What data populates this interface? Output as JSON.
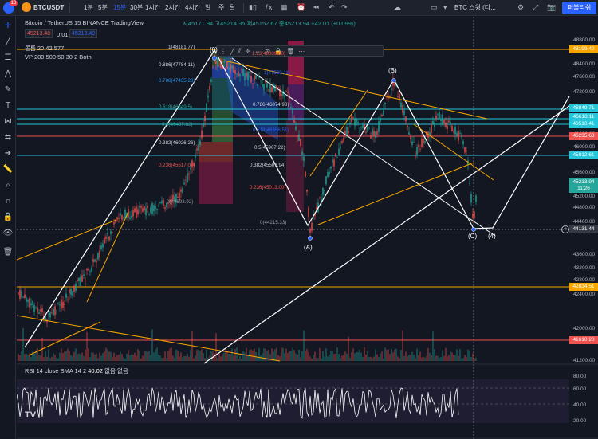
{
  "topbar": {
    "badge": "13",
    "symbol": "BTCUSDT",
    "timeframes": [
      "1분",
      "5분",
      "15분",
      "30분",
      "1시간",
      "2시간",
      "4시간",
      "일",
      "주",
      "달"
    ],
    "active_timeframe": "15분",
    "compare_label": "BTC 스윙 (다...",
    "publish_label": "퍼블리쉬"
  },
  "legend": {
    "title": "Bitcoin / TetherUS  15  BINANCE  TradingView",
    "ohlc": "시45171.94  고45214.35  저45152.67  종45213.94  +42.01 (+0.09%)",
    "bid": "45213.48",
    "spread": "0.01",
    "ask": "45213.49",
    "bollinger": "볼륨  20  42  577",
    "vp": "VP 200 500 50 30 2 Both"
  },
  "price_axis": {
    "ticks": [
      "48800.00",
      "48400.00",
      "47600.00",
      "47200.00",
      "46400.00",
      "46000.00",
      "45600.00",
      "45200.00",
      "44800.00",
      "44400.00",
      "43600.00",
      "43200.00",
      "42800.00",
      "42400.00",
      "42000.00",
      "41600.00",
      "41200.00"
    ],
    "tags": [
      {
        "label": "48199.40",
        "color": "#f7a600"
      },
      {
        "label": "46849.71",
        "color": "#26c6da"
      },
      {
        "label": "46618.11",
        "color": "#26c6da"
      },
      {
        "label": "46510.41",
        "color": "#26c6da"
      },
      {
        "label": "46235.63",
        "color": "#ef5350"
      },
      {
        "label": "45812.61",
        "color": "#26c6da"
      },
      {
        "label": "45213.94",
        "color": "#26a69a"
      },
      {
        "label": "11:26",
        "color": "#26a69a"
      },
      {
        "label": "44131.44",
        "color": "#363a45"
      },
      {
        "label": "42834.51",
        "color": "#f7a600"
      },
      {
        "label": "41610.20",
        "color": "#ef5350"
      }
    ]
  },
  "time_axis": {
    "labels": [
      "23",
      "25",
      "12:00",
      "28",
      "30",
      "4월",
      "12:00",
      "4",
      "6",
      "2022-04-07",
      "01:15",
      "8",
      "12:00"
    ]
  },
  "fib_levels": [
    "1(48181.77)",
    "0.886(47784.11)",
    "0.786(47435.23)",
    "0.618(46849.5)",
    "0.5(46437.82)",
    "0.382(46026.26)",
    "0.236(45517.04)",
    "0(44693.92)",
    "1.13(48039.00)",
    "1(47599.11)",
    "0.786(46874.98)",
    "0.618(46306.51)",
    "0.5(45907.22)",
    "0.382(45507.94)",
    "0.236(45013.00)",
    "0(44215.33)"
  ],
  "waves": [
    "(0)",
    "(A)",
    "(B)",
    "(C)",
    "(4)"
  ],
  "rsi": {
    "label": "RSI  14  close  SMA  14  2",
    "value": "40.02",
    "suffix": "없음  없음",
    "ticks": [
      "80.00",
      "60.00",
      "40.00",
      "20.00"
    ]
  },
  "colors": {
    "background": "#131722",
    "cyan_line": "#26c6da",
    "orange_line": "#f7a600",
    "red_line": "#ef5350",
    "accent": "#2962ff"
  }
}
